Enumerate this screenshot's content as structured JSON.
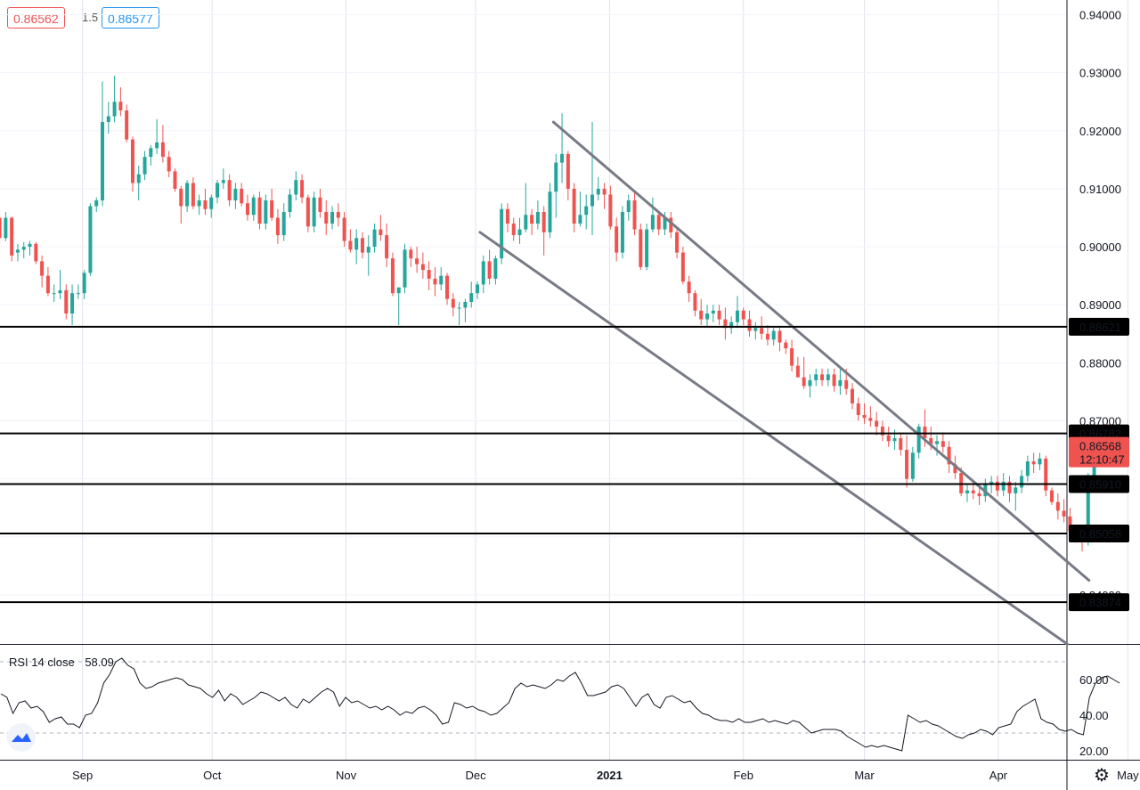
{
  "header": {
    "bid": "0.86562",
    "spread": "1.5",
    "ask": "0.86577"
  },
  "rsi": {
    "label": "RSI 14 close",
    "value": "58.09"
  },
  "price_axis": [
    "0.94000",
    "0.93000",
    "0.92000",
    "0.91000",
    "0.90000",
    "0.89000",
    "0.88000",
    "0.87000",
    "0.86000",
    "0.85000",
    "0.84000"
  ],
  "rsi_axis": [
    "60.00",
    "40.00",
    "20.00"
  ],
  "levels": [
    "0.88621",
    "0.86782",
    "0.85910",
    "0.85058",
    "0.83874"
  ],
  "last_price": {
    "value": "0.86568",
    "countdown": "12:10:47"
  },
  "time_axis": [
    "Sep",
    "Oct",
    "Nov",
    "Dec",
    "2021",
    "Feb",
    "Mar",
    "Apr",
    "May"
  ],
  "colors": {
    "up": "#26a69a",
    "down": "#ef5350",
    "channel": "#787b86",
    "level": "#000000"
  },
  "chart_data": {
    "type": "candlestick",
    "symbol_pair_quotes": {
      "bid": 0.86562,
      "ask": 0.86577,
      "spread": 1.5
    },
    "ylim": [
      0.832,
      0.943
    ],
    "horizontal_levels": [
      0.88621,
      0.86782,
      0.8591,
      0.85058,
      0.83874
    ],
    "last_price": 0.86568,
    "channel": {
      "upper": [
        [
          "2020-12-19",
          0.9215
        ],
        [
          "2021-04-22",
          0.8425
        ]
      ],
      "lower": [
        [
          "2020-12-02",
          0.9025
        ],
        [
          "2021-04-17",
          0.8315
        ]
      ]
    },
    "x_axis_labels": [
      "Sep",
      "Oct",
      "Nov",
      "Dec",
      "2021",
      "Feb",
      "Mar",
      "Apr",
      "May"
    ],
    "start_date": "2020-08-10",
    "ohlc": [
      [
        0.9065,
        0.9068,
        0.9045,
        0.9055
      ],
      [
        0.9055,
        0.9062,
        0.904,
        0.905
      ],
      [
        0.905,
        0.9058,
        0.9005,
        0.9015
      ],
      [
        0.9015,
        0.906,
        0.901,
        0.905
      ],
      [
        0.905,
        0.9052,
        0.8975,
        0.8985
      ],
      [
        0.899,
        0.9005,
        0.8975,
        0.8995
      ],
      [
        0.8995,
        0.9008,
        0.898,
        0.9
      ],
      [
        0.9,
        0.901,
        0.8985,
        0.9005
      ],
      [
        0.9005,
        0.9008,
        0.897,
        0.8975
      ],
      [
        0.8975,
        0.8985,
        0.893,
        0.895
      ],
      [
        0.895,
        0.8965,
        0.8915,
        0.892
      ],
      [
        0.892,
        0.8935,
        0.8905,
        0.892
      ],
      [
        0.892,
        0.896,
        0.891,
        0.8925
      ],
      [
        0.8925,
        0.8935,
        0.8875,
        0.8885
      ],
      [
        0.8885,
        0.8935,
        0.8865,
        0.892
      ],
      [
        0.892,
        0.8935,
        0.891,
        0.892
      ],
      [
        0.892,
        0.896,
        0.891,
        0.8955
      ],
      [
        0.8955,
        0.9075,
        0.895,
        0.907
      ],
      [
        0.907,
        0.9085,
        0.906,
        0.908
      ],
      [
        0.908,
        0.9285,
        0.907,
        0.9215
      ],
      [
        0.9215,
        0.925,
        0.9195,
        0.9225
      ],
      [
        0.9225,
        0.9295,
        0.9215,
        0.925
      ],
      [
        0.925,
        0.9275,
        0.9225,
        0.9235
      ],
      [
        0.9235,
        0.9245,
        0.918,
        0.9185
      ],
      [
        0.9185,
        0.919,
        0.9095,
        0.911
      ],
      [
        0.911,
        0.914,
        0.908,
        0.9125
      ],
      [
        0.9125,
        0.9165,
        0.9115,
        0.9155
      ],
      [
        0.9155,
        0.9175,
        0.914,
        0.917
      ],
      [
        0.917,
        0.922,
        0.916,
        0.918
      ],
      [
        0.918,
        0.921,
        0.9145,
        0.9155
      ],
      [
        0.9155,
        0.9165,
        0.912,
        0.913
      ],
      [
        0.913,
        0.9135,
        0.9095,
        0.91
      ],
      [
        0.91,
        0.9105,
        0.904,
        0.907
      ],
      [
        0.907,
        0.9115,
        0.906,
        0.911
      ],
      [
        0.911,
        0.912,
        0.9065,
        0.907
      ],
      [
        0.907,
        0.909,
        0.9055,
        0.908
      ],
      [
        0.908,
        0.91,
        0.9055,
        0.9065
      ],
      [
        0.9065,
        0.909,
        0.905,
        0.9085
      ],
      [
        0.9085,
        0.9115,
        0.9075,
        0.911
      ],
      [
        0.911,
        0.9135,
        0.91,
        0.9115
      ],
      [
        0.9115,
        0.9125,
        0.907,
        0.908
      ],
      [
        0.908,
        0.911,
        0.9065,
        0.91
      ],
      [
        0.91,
        0.911,
        0.907,
        0.9075
      ],
      [
        0.9075,
        0.909,
        0.9045,
        0.9055
      ],
      [
        0.9055,
        0.909,
        0.9045,
        0.9085
      ],
      [
        0.9085,
        0.9095,
        0.903,
        0.904
      ],
      [
        0.904,
        0.909,
        0.903,
        0.908
      ],
      [
        0.908,
        0.91,
        0.9045,
        0.905
      ],
      [
        0.905,
        0.9065,
        0.9005,
        0.902
      ],
      [
        0.902,
        0.9075,
        0.901,
        0.906
      ],
      [
        0.906,
        0.91,
        0.905,
        0.909
      ],
      [
        0.909,
        0.913,
        0.908,
        0.9115
      ],
      [
        0.9115,
        0.9125,
        0.9075,
        0.9085
      ],
      [
        0.9085,
        0.909,
        0.9025,
        0.9035
      ],
      [
        0.9035,
        0.9095,
        0.9025,
        0.9085
      ],
      [
        0.9085,
        0.91,
        0.905,
        0.906
      ],
      [
        0.906,
        0.908,
        0.902,
        0.904
      ],
      [
        0.904,
        0.907,
        0.903,
        0.906
      ],
      [
        0.906,
        0.9075,
        0.9035,
        0.905
      ],
      [
        0.905,
        0.906,
        0.9,
        0.901
      ],
      [
        0.901,
        0.903,
        0.899,
        0.8995
      ],
      [
        0.8995,
        0.903,
        0.897,
        0.9015
      ],
      [
        0.9015,
        0.9025,
        0.898,
        0.899
      ],
      [
        0.899,
        0.902,
        0.895,
        0.9
      ],
      [
        0.9,
        0.904,
        0.899,
        0.903
      ],
      [
        0.903,
        0.9055,
        0.901,
        0.902
      ],
      [
        0.902,
        0.904,
        0.8965,
        0.898
      ],
      [
        0.898,
        0.899,
        0.8915,
        0.892
      ],
      [
        0.892,
        0.893,
        0.8865,
        0.893
      ],
      [
        0.893,
        0.9005,
        0.892,
        0.8995
      ],
      [
        0.8995,
        0.9,
        0.8965,
        0.898
      ],
      [
        0.898,
        0.9,
        0.8955,
        0.897
      ],
      [
        0.897,
        0.899,
        0.8945,
        0.896
      ],
      [
        0.896,
        0.8975,
        0.8925,
        0.8945
      ],
      [
        0.8945,
        0.8965,
        0.8915,
        0.8935
      ],
      [
        0.8935,
        0.8965,
        0.8925,
        0.895
      ],
      [
        0.895,
        0.8955,
        0.89,
        0.891
      ],
      [
        0.891,
        0.892,
        0.888,
        0.8895
      ],
      [
        0.8895,
        0.8905,
        0.8865,
        0.8895
      ],
      [
        0.8895,
        0.891,
        0.887,
        0.8905
      ],
      [
        0.8905,
        0.894,
        0.8895,
        0.892
      ],
      [
        0.892,
        0.894,
        0.891,
        0.8935
      ],
      [
        0.8935,
        0.8985,
        0.892,
        0.8975
      ],
      [
        0.8975,
        0.8995,
        0.8935,
        0.8945
      ],
      [
        0.8945,
        0.8985,
        0.8935,
        0.898
      ],
      [
        0.898,
        0.9075,
        0.897,
        0.9065
      ],
      [
        0.9065,
        0.9075,
        0.9025,
        0.904
      ],
      [
        0.904,
        0.905,
        0.901,
        0.902
      ],
      [
        0.902,
        0.905,
        0.9005,
        0.903
      ],
      [
        0.903,
        0.911,
        0.9025,
        0.9055
      ],
      [
        0.9055,
        0.9065,
        0.902,
        0.904
      ],
      [
        0.904,
        0.908,
        0.903,
        0.906
      ],
      [
        0.906,
        0.907,
        0.8985,
        0.9025
      ],
      [
        0.9025,
        0.911,
        0.9015,
        0.9095
      ],
      [
        0.9095,
        0.916,
        0.905,
        0.9145
      ],
      [
        0.9145,
        0.923,
        0.911,
        0.916
      ],
      [
        0.916,
        0.9165,
        0.908,
        0.91
      ],
      [
        0.91,
        0.911,
        0.9025,
        0.904
      ],
      [
        0.904,
        0.9095,
        0.9035,
        0.9055
      ],
      [
        0.9055,
        0.909,
        0.903,
        0.907
      ],
      [
        0.907,
        0.9215,
        0.902,
        0.909
      ],
      [
        0.909,
        0.912,
        0.908,
        0.91
      ],
      [
        0.91,
        0.911,
        0.9065,
        0.909
      ],
      [
        0.909,
        0.9105,
        0.903,
        0.9035
      ],
      [
        0.9035,
        0.905,
        0.8975,
        0.899
      ],
      [
        0.899,
        0.907,
        0.898,
        0.906
      ],
      [
        0.906,
        0.909,
        0.9045,
        0.908
      ],
      [
        0.908,
        0.9095,
        0.902,
        0.903
      ],
      [
        0.903,
        0.904,
        0.896,
        0.8965
      ],
      [
        0.8965,
        0.904,
        0.896,
        0.903
      ],
      [
        0.903,
        0.9085,
        0.9025,
        0.9055
      ],
      [
        0.9055,
        0.906,
        0.902,
        0.903
      ],
      [
        0.903,
        0.906,
        0.902,
        0.905
      ],
      [
        0.905,
        0.906,
        0.9015,
        0.9025
      ],
      [
        0.9025,
        0.903,
        0.898,
        0.899
      ],
      [
        0.899,
        0.9,
        0.8935,
        0.894
      ],
      [
        0.894,
        0.895,
        0.8905,
        0.892
      ],
      [
        0.892,
        0.8925,
        0.888,
        0.889
      ],
      [
        0.889,
        0.891,
        0.8865,
        0.8875
      ],
      [
        0.8875,
        0.89,
        0.886,
        0.8885
      ],
      [
        0.8885,
        0.89,
        0.887,
        0.889
      ],
      [
        0.889,
        0.89,
        0.8865,
        0.8875
      ],
      [
        0.8875,
        0.8895,
        0.884,
        0.886
      ],
      [
        0.886,
        0.888,
        0.885,
        0.887
      ],
      [
        0.887,
        0.8915,
        0.886,
        0.889
      ],
      [
        0.889,
        0.8895,
        0.8865,
        0.8875
      ],
      [
        0.8875,
        0.889,
        0.8845,
        0.8855
      ],
      [
        0.8855,
        0.887,
        0.884,
        0.886
      ],
      [
        0.886,
        0.888,
        0.884,
        0.885
      ],
      [
        0.885,
        0.8865,
        0.883,
        0.884
      ],
      [
        0.884,
        0.886,
        0.883,
        0.8855
      ],
      [
        0.8855,
        0.886,
        0.882,
        0.8835
      ],
      [
        0.8835,
        0.884,
        0.8815,
        0.8825
      ],
      [
        0.8825,
        0.884,
        0.8785,
        0.8795
      ],
      [
        0.8795,
        0.881,
        0.8775,
        0.8775
      ],
      [
        0.8775,
        0.881,
        0.8755,
        0.876
      ],
      [
        0.876,
        0.878,
        0.874,
        0.877
      ],
      [
        0.877,
        0.879,
        0.876,
        0.878
      ],
      [
        0.878,
        0.879,
        0.876,
        0.877
      ],
      [
        0.877,
        0.879,
        0.876,
        0.878
      ],
      [
        0.878,
        0.879,
        0.875,
        0.876
      ],
      [
        0.876,
        0.879,
        0.8745,
        0.877
      ],
      [
        0.877,
        0.879,
        0.8745,
        0.8755
      ],
      [
        0.8755,
        0.8765,
        0.872,
        0.873
      ],
      [
        0.873,
        0.874,
        0.87,
        0.871
      ],
      [
        0.871,
        0.873,
        0.8695,
        0.8705
      ],
      [
        0.8705,
        0.8725,
        0.869,
        0.87
      ],
      [
        0.87,
        0.8715,
        0.8675,
        0.869
      ],
      [
        0.869,
        0.87,
        0.8665,
        0.8675
      ],
      [
        0.8675,
        0.869,
        0.8655,
        0.8665
      ],
      [
        0.8665,
        0.8685,
        0.865,
        0.867
      ],
      [
        0.867,
        0.868,
        0.864,
        0.865
      ],
      [
        0.865,
        0.8675,
        0.8585,
        0.86
      ],
      [
        0.86,
        0.8655,
        0.8595,
        0.8645
      ],
      [
        0.8645,
        0.8695,
        0.8635,
        0.869
      ],
      [
        0.869,
        0.872,
        0.8655,
        0.867
      ],
      [
        0.867,
        0.869,
        0.865,
        0.866
      ],
      [
        0.866,
        0.8675,
        0.864,
        0.8665
      ],
      [
        0.8665,
        0.868,
        0.8645,
        0.8655
      ],
      [
        0.8655,
        0.8665,
        0.861,
        0.8625
      ],
      [
        0.8625,
        0.864,
        0.86,
        0.861
      ],
      [
        0.861,
        0.862,
        0.857,
        0.8575
      ],
      [
        0.8575,
        0.859,
        0.856,
        0.858
      ],
      [
        0.858,
        0.859,
        0.8565,
        0.8575
      ],
      [
        0.8575,
        0.8585,
        0.8555,
        0.857
      ],
      [
        0.857,
        0.86,
        0.856,
        0.859
      ],
      [
        0.859,
        0.8605,
        0.8575,
        0.8595
      ],
      [
        0.8595,
        0.8605,
        0.857,
        0.858
      ],
      [
        0.858,
        0.861,
        0.857,
        0.8595
      ],
      [
        0.8595,
        0.8605,
        0.856,
        0.8575
      ],
      [
        0.8575,
        0.8595,
        0.8545,
        0.8585
      ],
      [
        0.8585,
        0.8615,
        0.8575,
        0.8605
      ],
      [
        0.8605,
        0.864,
        0.8595,
        0.863
      ],
      [
        0.863,
        0.8645,
        0.861,
        0.8625
      ],
      [
        0.8625,
        0.8645,
        0.8615,
        0.8635
      ],
      [
        0.8635,
        0.864,
        0.857,
        0.858
      ],
      [
        0.858,
        0.8585,
        0.8555,
        0.856
      ],
      [
        0.856,
        0.8575,
        0.853,
        0.8545
      ],
      [
        0.8545,
        0.8565,
        0.8525,
        0.8535
      ],
      [
        0.8535,
        0.855,
        0.8505,
        0.851
      ],
      [
        0.851,
        0.852,
        0.849,
        0.8505
      ],
      [
        0.8505,
        0.8515,
        0.8475,
        0.8495
      ],
      [
        0.8495,
        0.861,
        0.8485,
        0.8595
      ],
      [
        0.8595,
        0.8655,
        0.8585,
        0.8645
      ],
      [
        0.8645,
        0.8685,
        0.8635,
        0.868
      ],
      [
        0.868,
        0.8695,
        0.866,
        0.867
      ],
      [
        0.867,
        0.868,
        0.8645,
        0.866
      ]
    ],
    "rsi": {
      "period": 14,
      "last": 58.09,
      "ylim": [
        15,
        75
      ],
      "bands": [
        70,
        30
      ],
      "values": [
        52.0,
        50.0,
        41.0,
        47.0,
        48.0,
        44.0,
        45.0,
        42.0,
        36.0,
        38.0,
        39.0,
        35.0,
        35.0,
        33.0,
        40.0,
        41.0,
        47.0,
        58.0,
        63.0,
        70.0,
        72.0,
        68.0,
        66.0,
        58.0,
        55.0,
        56.0,
        58.0,
        59.0,
        60.0,
        61.0,
        60.0,
        57.0,
        56.0,
        55.0,
        52.0,
        50.0,
        54.0,
        48.0,
        52.0,
        50.0,
        46.0,
        48.0,
        50.0,
        53.0,
        52.0,
        50.0,
        48.0,
        50.0,
        46.0,
        44.0,
        49.0,
        47.0,
        50.0,
        53.0,
        55.0,
        53.0,
        45.0,
        50.0,
        47.0,
        48.0,
        46.0,
        44.0,
        45.0,
        43.0,
        45.0,
        43.0,
        40.0,
        42.0,
        41.0,
        44.0,
        45.0,
        43.0,
        40.0,
        35.0,
        36.0,
        47.0,
        46.0,
        44.0,
        45.0,
        43.0,
        42.0,
        40.0,
        41.0,
        44.0,
        47.0,
        55.0,
        58.0,
        56.0,
        57.0,
        56.0,
        55.0,
        57.0,
        60.0,
        59.0,
        62.0,
        64.0,
        58.0,
        51.0,
        51.0,
        52.0,
        53.0,
        56.0,
        57.0,
        55.0,
        50.0,
        45.0,
        50.0,
        52.0,
        46.0,
        44.0,
        50.0,
        51.0,
        49.0,
        47.0,
        48.0,
        44.0,
        41.0,
        40.0,
        38.0,
        37.0,
        37.0,
        36.0,
        38.0,
        36.0,
        36.0,
        37.0,
        38.0,
        36.0,
        37.0,
        36.0,
        35.0,
        37.0,
        36.0,
        33.0,
        30.0,
        31.0,
        32.0,
        32.0,
        32.0,
        31.0,
        28.0,
        26.0,
        24.0,
        22.0,
        23.0,
        22.0,
        23.0,
        22.0,
        21.0,
        20.0,
        40.0,
        38.0,
        36.0,
        37.0,
        35.0,
        34.0,
        32.0,
        30.0,
        28.0,
        27.0,
        29.0,
        30.0,
        32.0,
        31.0,
        29.0,
        33.0,
        34.0,
        35.0,
        42.0,
        45.0,
        47.0,
        49.0,
        38.0,
        36.0,
        35.0,
        32.0,
        31.0,
        32.0,
        30.0,
        29.0,
        50.0,
        58.0,
        61.0,
        62.0,
        60.0,
        58.0
      ]
    }
  }
}
